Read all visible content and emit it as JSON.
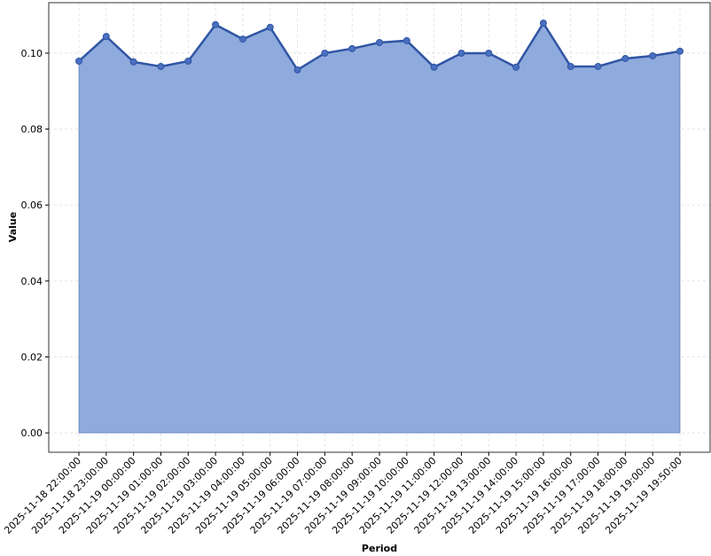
{
  "chart_data": {
    "type": "area",
    "x_label": "Period",
    "y_label": "Value",
    "categories": [
      "2025-11-18 22:00:00",
      "2025-11-18 23:00:00",
      "2025-11-19 00:00:00",
      "2025-11-19 01:00:00",
      "2025-11-19 02:00:00",
      "2025-11-19 03:00:00",
      "2025-11-19 04:00:00",
      "2025-11-19 05:00:00",
      "2025-11-19 06:00:00",
      "2025-11-19 07:00:00",
      "2025-11-19 08:00:00",
      "2025-11-19 09:00:00",
      "2025-11-19 10:00:00",
      "2025-11-19 11:00:00",
      "2025-11-19 12:00:00",
      "2025-11-19 13:00:00",
      "2025-11-19 14:00:00",
      "2025-11-19 15:00:00",
      "2025-11-19 16:00:00",
      "2025-11-19 17:00:00",
      "2025-11-19 18:00:00",
      "2025-11-19 19:00:00",
      "2025-11-19 19:50:00"
    ],
    "values": [
      0.0979,
      0.1044,
      0.0977,
      0.0965,
      0.0979,
      0.1075,
      0.1037,
      0.1068,
      0.0956,
      0.1,
      0.1012,
      0.1028,
      0.1033,
      0.0963,
      0.1,
      0.1,
      0.0963,
      0.1079,
      0.0965,
      0.0965,
      0.0986,
      0.0993,
      0.1005
    ],
    "color": "#2f55a4",
    "fill_color": "#8faadc",
    "ylim": [
      -0.0051,
      0.1133
    ],
    "yticks": [
      {
        "value": 0,
        "label": "0.00"
      },
      {
        "value": 0.02,
        "label": "0.02"
      },
      {
        "value": 0.04,
        "label": "0.04"
      },
      {
        "value": 0.06,
        "label": "0.06"
      },
      {
        "value": 0.08,
        "label": "0.08"
      },
      {
        "value": 0.1,
        "label": "0.10"
      }
    ],
    "grid": true
  }
}
